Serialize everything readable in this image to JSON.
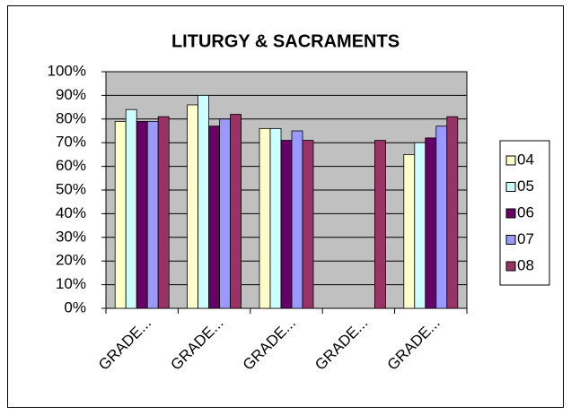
{
  "chart_data": {
    "type": "bar",
    "title": "LITURGY & SACRAMENTS",
    "categories": [
      "GRADE...",
      "GRADE...",
      "GRADE...",
      "GRADE...",
      "GRADE..."
    ],
    "series": [
      {
        "name": "04",
        "color": "#ffffcc",
        "values": [
          79,
          86,
          76,
          null,
          65
        ]
      },
      {
        "name": "05",
        "color": "#ccffff",
        "values": [
          84,
          90,
          76,
          null,
          70
        ]
      },
      {
        "name": "06",
        "color": "#660066",
        "values": [
          79,
          77,
          71,
          null,
          72
        ]
      },
      {
        "name": "07",
        "color": "#9999ff",
        "values": [
          79,
          80,
          75,
          null,
          77
        ]
      },
      {
        "name": "08",
        "color": "#993366",
        "values": [
          81,
          82,
          71,
          71,
          81
        ]
      }
    ],
    "ylim": [
      0,
      100
    ],
    "yticks": [
      {
        "value": 0,
        "label": "0%"
      },
      {
        "value": 10,
        "label": "10%"
      },
      {
        "value": 20,
        "label": "20%"
      },
      {
        "value": 30,
        "label": "30%"
      },
      {
        "value": 40,
        "label": "40%"
      },
      {
        "value": 50,
        "label": "50%"
      },
      {
        "value": 60,
        "label": "60%"
      },
      {
        "value": 70,
        "label": "70%"
      },
      {
        "value": 80,
        "label": "80%"
      },
      {
        "value": 90,
        "label": "90%"
      },
      {
        "value": 100,
        "label": "100%"
      }
    ],
    "grid": true,
    "legend": "right",
    "plot_background": "#c0c0c0"
  }
}
